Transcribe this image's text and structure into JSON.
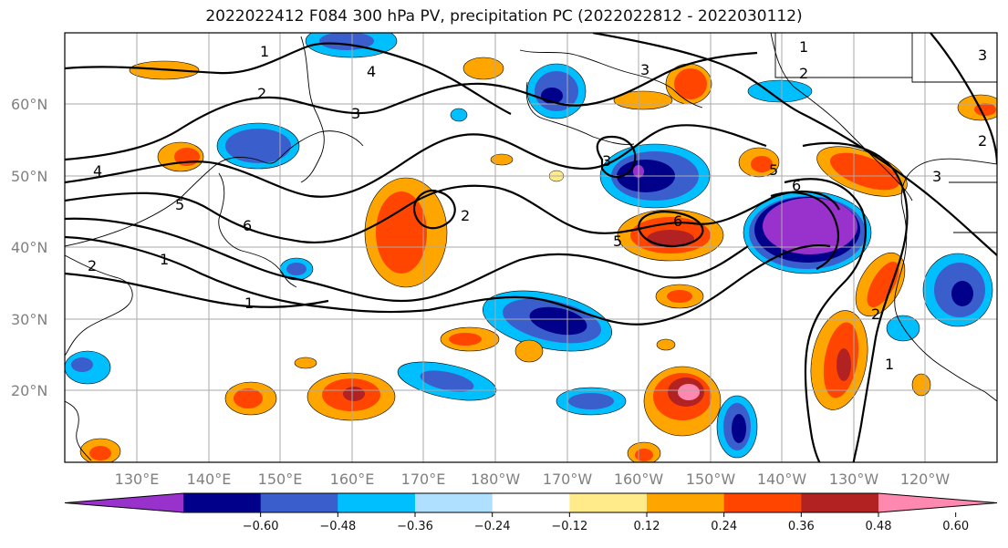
{
  "title": "2022022412 F084 300 hPa PV, precipitation PC (2022022812 - 2022030112)",
  "map": {
    "lat_labels": [
      "60°N",
      "50°N",
      "40°N",
      "30°N",
      "20°N"
    ],
    "lat_values": [
      60,
      50,
      40,
      30,
      20
    ],
    "lon_labels": [
      "130°E",
      "140°E",
      "150°E",
      "160°E",
      "170°E",
      "180°W",
      "170°W",
      "160°W",
      "150°W",
      "140°W",
      "130°W",
      "120°W"
    ],
    "lon_values": [
      130,
      140,
      150,
      160,
      170,
      180,
      190,
      200,
      210,
      220,
      230,
      240
    ],
    "contour_labels": [
      "1",
      "2",
      "3",
      "4",
      "5",
      "6"
    ]
  },
  "colorbar": {
    "ticks": [
      "−0.60",
      "−0.48",
      "−0.36",
      "−0.24",
      "−0.12",
      "0.12",
      "0.24",
      "0.36",
      "0.48",
      "0.60"
    ],
    "colors": [
      "#9932cc",
      "#00008b",
      "#3a5fcd",
      "#00bfff",
      "#b0e0ff",
      "#ffffff",
      "#ffeb8a",
      "#ffa500",
      "#ff4500",
      "#b22222",
      "#ff88b0"
    ]
  }
}
